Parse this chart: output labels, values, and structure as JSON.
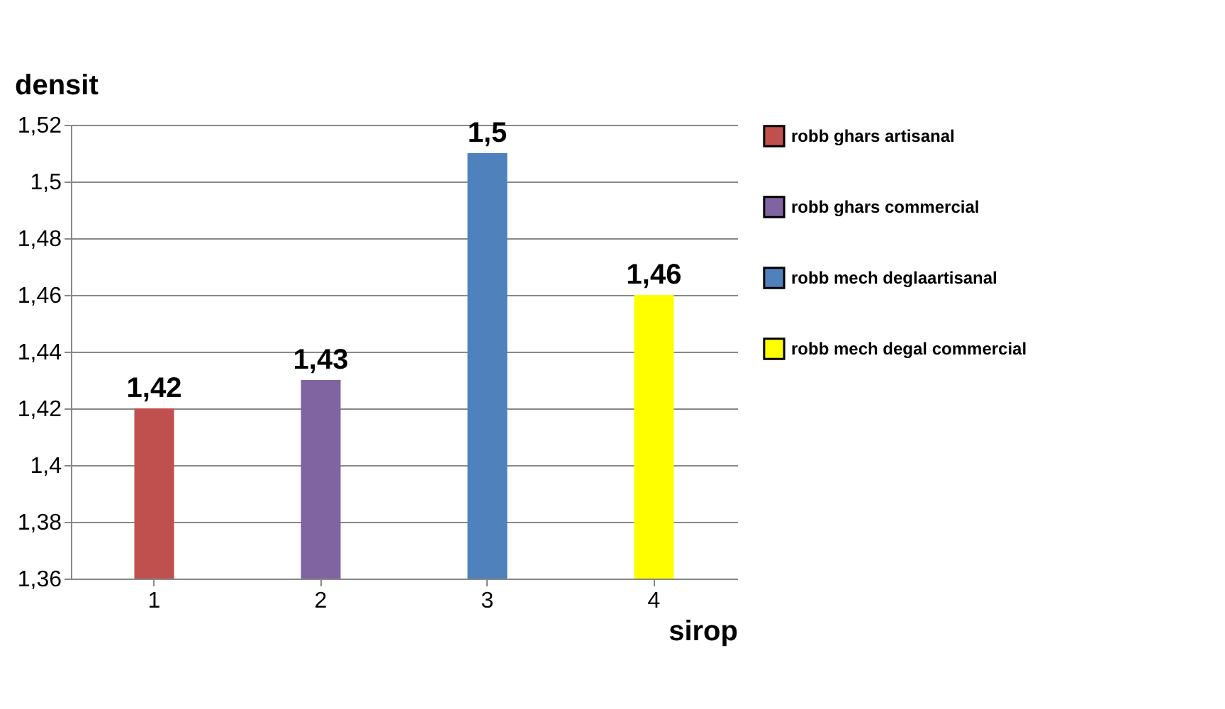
{
  "chart_data": {
    "type": "bar",
    "xlabel": "sirop",
    "ylabel": "densit",
    "categories": [
      "1",
      "2",
      "3",
      "4"
    ],
    "series": [
      {
        "name": "robb ghars artisanal",
        "color": "#c0504d",
        "values": [
          1.42,
          null,
          null,
          null
        ],
        "value_labels": [
          "1,42",
          null,
          null,
          null
        ]
      },
      {
        "name": "robb ghars commercial",
        "color": "#8064a2",
        "values": [
          null,
          1.43,
          null,
          null
        ],
        "value_labels": [
          null,
          "1,43",
          null,
          null
        ]
      },
      {
        "name": "robb mech deglaartisanal",
        "color": "#4f81bd",
        "values": [
          null,
          null,
          1.51,
          null
        ],
        "value_labels": [
          null,
          null,
          "1,5",
          null
        ]
      },
      {
        "name": "robb mech degal commercial",
        "color": "#ffff00",
        "values": [
          null,
          null,
          null,
          1.46
        ],
        "value_labels": [
          null,
          null,
          null,
          "1,46"
        ]
      }
    ],
    "ylim": [
      1.36,
      1.52
    ],
    "yticks": [
      {
        "value": 1.36,
        "label": "1,36"
      },
      {
        "value": 1.38,
        "label": "1,38"
      },
      {
        "value": 1.4,
        "label": "1,4"
      },
      {
        "value": 1.42,
        "label": "1,42"
      },
      {
        "value": 1.44,
        "label": "1,44"
      },
      {
        "value": 1.46,
        "label": "1,46"
      },
      {
        "value": 1.48,
        "label": "1,48"
      },
      {
        "value": 1.5,
        "label": "1,5"
      },
      {
        "value": 1.52,
        "label": "1,52"
      }
    ],
    "grid": "y",
    "legend": "right"
  }
}
